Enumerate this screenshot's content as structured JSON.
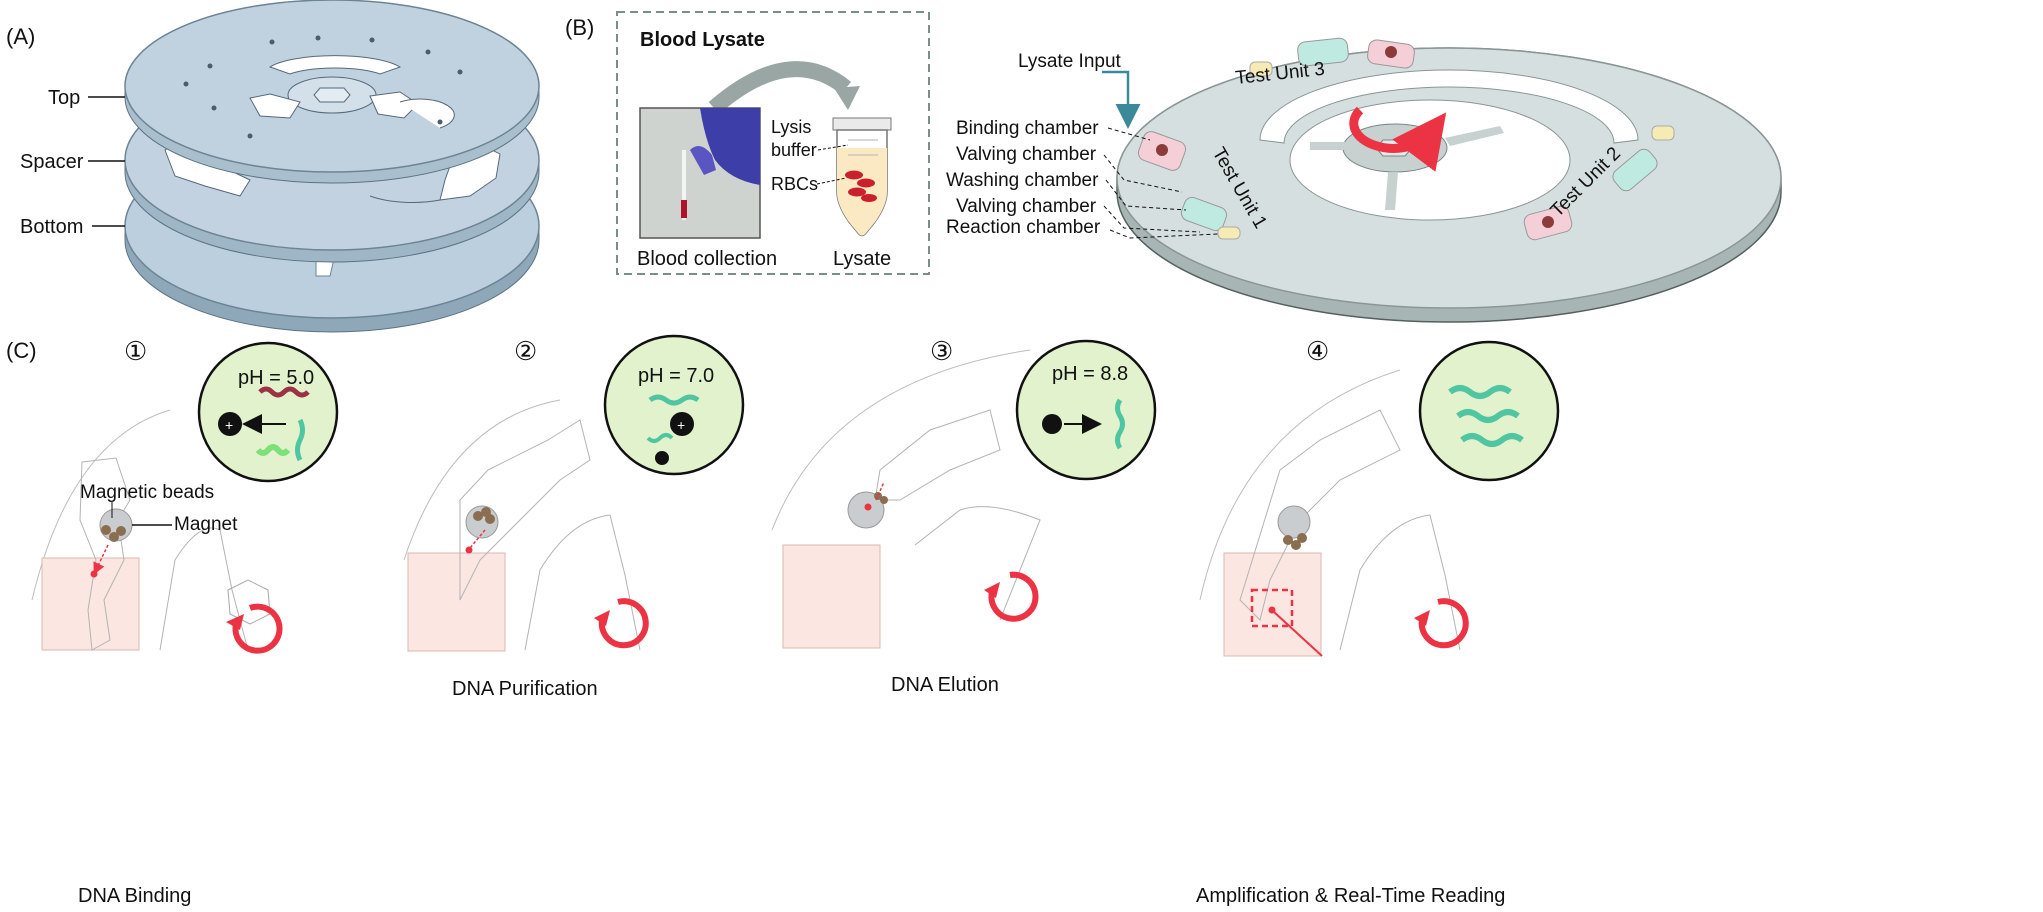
{
  "panel_a": {
    "label": "(A)",
    "layers": [
      "Top",
      "Spacer",
      "Bottom"
    ]
  },
  "panel_b": {
    "label": "(B)",
    "box_title": "Blood Lysate",
    "tube_labels": [
      "Lysis",
      "buffer",
      "RBCs"
    ],
    "caption_left": "Blood collection",
    "caption_right": "Lysate",
    "disc_labels": {
      "lysate_input": "Lysate Input",
      "chambers": [
        "Binding chamber",
        "Valving chamber",
        "Washing chamber",
        "Valving chamber",
        "Reaction chamber"
      ],
      "units": [
        "Test Unit 1",
        "Test Unit 2",
        "Test Unit 3"
      ]
    }
  },
  "panel_c": {
    "label": "(C)",
    "steps": [
      {
        "num": "①",
        "ph": "pH = 5.0",
        "title": "DNA Binding"
      },
      {
        "num": "②",
        "ph": "pH = 7.0",
        "title": "DNA Purification"
      },
      {
        "num": "③",
        "ph": "pH = 8.8",
        "title": "DNA Elution"
      },
      {
        "num": "④",
        "ph": "",
        "title": "Amplification & Real-Time Reading"
      }
    ],
    "magnetic_beads": "Magnetic beads",
    "magnet": "Magnet"
  },
  "colors": {
    "disc": "#bccfdf",
    "disc_edge": "#6d8495",
    "disc_b": "#d6dfdf",
    "chamber_pink": "#f5cfd8",
    "chamber_teal": "#bfeae2",
    "chamber_yellow": "#f6ebb4",
    "ph_circle": "#e1f2cd",
    "red": "#ec3344",
    "dna_green": "#4fc6a0",
    "zone_pink": "#fbe6e1"
  }
}
